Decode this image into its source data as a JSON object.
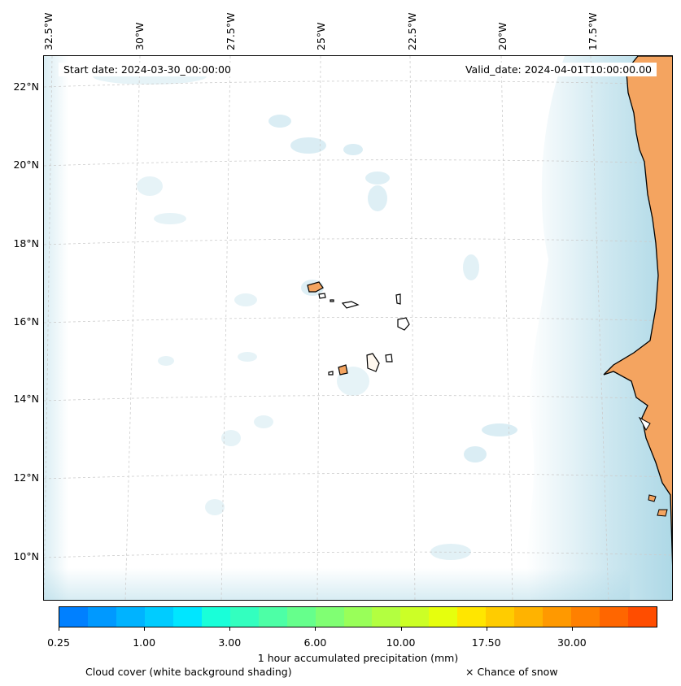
{
  "map": {
    "start_date": "Start date: 2024-03-30_00:00:00",
    "valid_date": "Valid_date: 2024-04-01T10:00:00.00",
    "lon_labels": [
      "32.5°W",
      "30°W",
      "27.5°W",
      "25°W",
      "22.5°W",
      "20°W",
      "17.5°W"
    ],
    "lat_labels": [
      "22°N",
      "20°N",
      "18°N",
      "16°N",
      "14°N",
      "12°N",
      "10°N"
    ],
    "colors": {
      "land": "#f4a460",
      "cloud": "#add8e6",
      "coast": "#000000",
      "grid": "#cccccc"
    }
  },
  "colorbar": {
    "title": "1 hour accumulated precipitation (mm)",
    "ticks": [
      "0.25",
      "1.00",
      "3.00",
      "6.00",
      "10.00",
      "17.50",
      "30.00"
    ],
    "colors": [
      "#0080ff",
      "#0099ff",
      "#00b3ff",
      "#00ccff",
      "#00e6ff",
      "#19ffd9",
      "#33ffbf",
      "#4dffa6",
      "#66ff8c",
      "#80ff73",
      "#99ff59",
      "#b3ff40",
      "#ccff26",
      "#e6ff0d",
      "#ffe600",
      "#ffcc00",
      "#ffb300",
      "#ff9900",
      "#ff8000",
      "#ff6600",
      "#ff4d00"
    ]
  },
  "legend": {
    "cloud_note": "Cloud cover (white background shading)",
    "snow_note": "× Chance of snow"
  }
}
